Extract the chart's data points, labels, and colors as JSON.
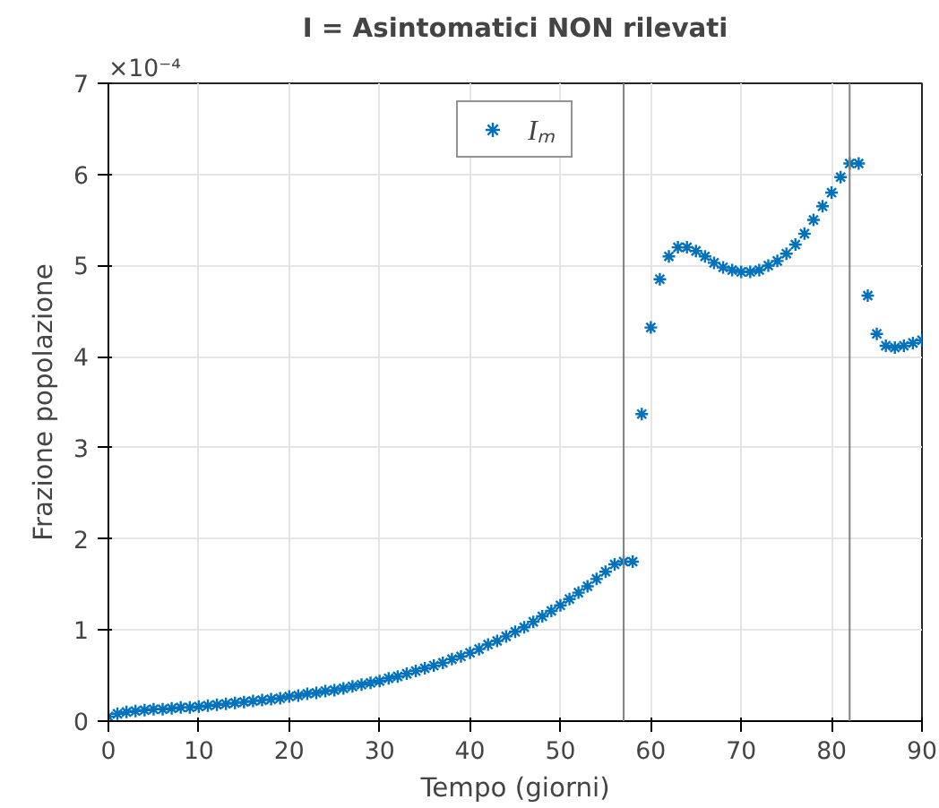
{
  "chart_data": {
    "type": "scatter",
    "title": "I = Asintomatici NON rilevati",
    "xlabel": "Tempo (giorni)",
    "ylabel": "Frazione popolazione",
    "annotations": [
      "×10⁻⁴"
    ],
    "x": [
      0,
      1,
      2,
      3,
      4,
      5,
      6,
      7,
      8,
      9,
      10,
      11,
      12,
      13,
      14,
      15,
      16,
      17,
      18,
      19,
      20,
      21,
      22,
      23,
      24,
      25,
      26,
      27,
      28,
      29,
      30,
      31,
      32,
      33,
      34,
      35,
      36,
      37,
      38,
      39,
      40,
      41,
      42,
      43,
      44,
      45,
      46,
      47,
      48,
      49,
      50,
      51,
      52,
      53,
      54,
      55,
      56,
      57,
      58,
      59,
      60,
      61,
      62,
      63,
      64,
      65,
      66,
      67,
      68,
      69,
      70,
      71,
      72,
      73,
      74,
      75,
      76,
      77,
      78,
      79,
      80,
      81,
      82,
      83,
      84,
      85,
      86,
      87,
      88,
      89,
      90
    ],
    "series": [
      {
        "name": "Iₘ",
        "color": "#0072bd",
        "values": [
          0.05,
          0.08,
          0.1,
          0.11,
          0.12,
          0.13,
          0.13,
          0.14,
          0.15,
          0.15,
          0.16,
          0.17,
          0.18,
          0.19,
          0.2,
          0.21,
          0.22,
          0.23,
          0.24,
          0.25,
          0.27,
          0.28,
          0.3,
          0.31,
          0.33,
          0.34,
          0.36,
          0.38,
          0.4,
          0.42,
          0.44,
          0.47,
          0.49,
          0.52,
          0.55,
          0.58,
          0.61,
          0.64,
          0.68,
          0.71,
          0.75,
          0.79,
          0.84,
          0.88,
          0.93,
          0.98,
          1.03,
          1.09,
          1.15,
          1.21,
          1.27,
          1.34,
          1.41,
          1.48,
          1.56,
          1.64,
          1.72,
          1.75,
          1.75,
          3.37,
          4.32,
          4.85,
          5.1,
          5.2,
          5.2,
          5.16,
          5.1,
          5.03,
          4.98,
          4.95,
          4.93,
          4.93,
          4.95,
          5.0,
          5.05,
          5.13,
          5.23,
          5.35,
          5.5,
          5.65,
          5.8,
          5.97,
          6.12,
          6.12,
          4.67,
          4.25,
          4.12,
          4.1,
          4.12,
          4.15,
          4.18
        ]
      }
    ],
    "ref_lines": [
      {
        "axis": "x",
        "value": 57,
        "label": null,
        "color": "#808080"
      },
      {
        "axis": "x",
        "value": 82,
        "label": null,
        "color": "#808080"
      }
    ],
    "xlim": [
      0,
      90
    ],
    "xticks": [
      0,
      10,
      20,
      30,
      40,
      50,
      60,
      70,
      80,
      90
    ],
    "ylim": [
      0,
      7
    ],
    "yticks": [
      0,
      1,
      2,
      3,
      4,
      5,
      6,
      7
    ],
    "grid": true,
    "legend": "top",
    "marker": "cross"
  }
}
